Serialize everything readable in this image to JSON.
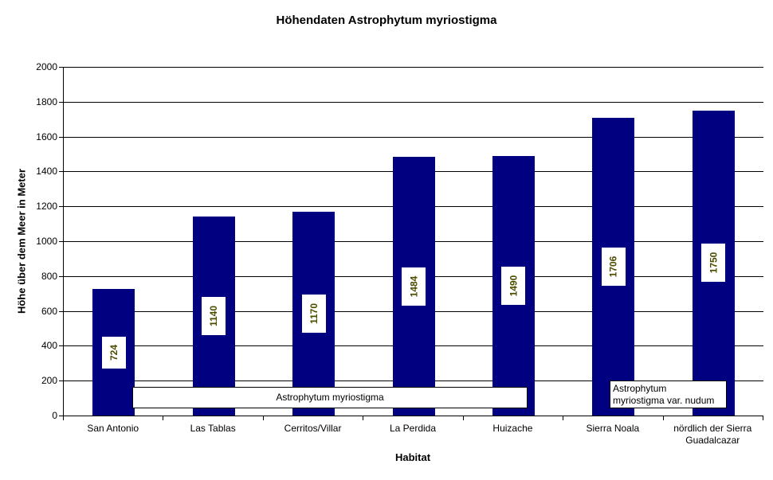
{
  "chart_data": {
    "type": "bar",
    "title": "Höhendaten Astrophytum myriostigma",
    "xlabel": "Habitat",
    "ylabel": "Höhe über dem Meer in Meter",
    "categories": [
      "San Antonio",
      "Las Tablas",
      "Cerritos/Villar",
      "La Perdida",
      "Huizache",
      "Sierra Noala",
      "nördlich der Sierra Guadalcazar"
    ],
    "values": [
      724,
      1140,
      1170,
      1484,
      1490,
      1706,
      1750
    ],
    "ylim": [
      0,
      2000
    ],
    "ytick_step": 200,
    "grid": true,
    "legend": "none",
    "bar_color": "#000080",
    "value_label_color": "#4d4d00",
    "value_label_background": "#ffffff",
    "annotations": [
      {
        "text": "Astrophytum myriostigma",
        "lines": [
          "Astrophytum myriostigma"
        ]
      },
      {
        "text": "Astrophytum myriostigma var. nudum",
        "lines": [
          "Astrophytum",
          "myriostigma var. nudum"
        ]
      }
    ]
  }
}
